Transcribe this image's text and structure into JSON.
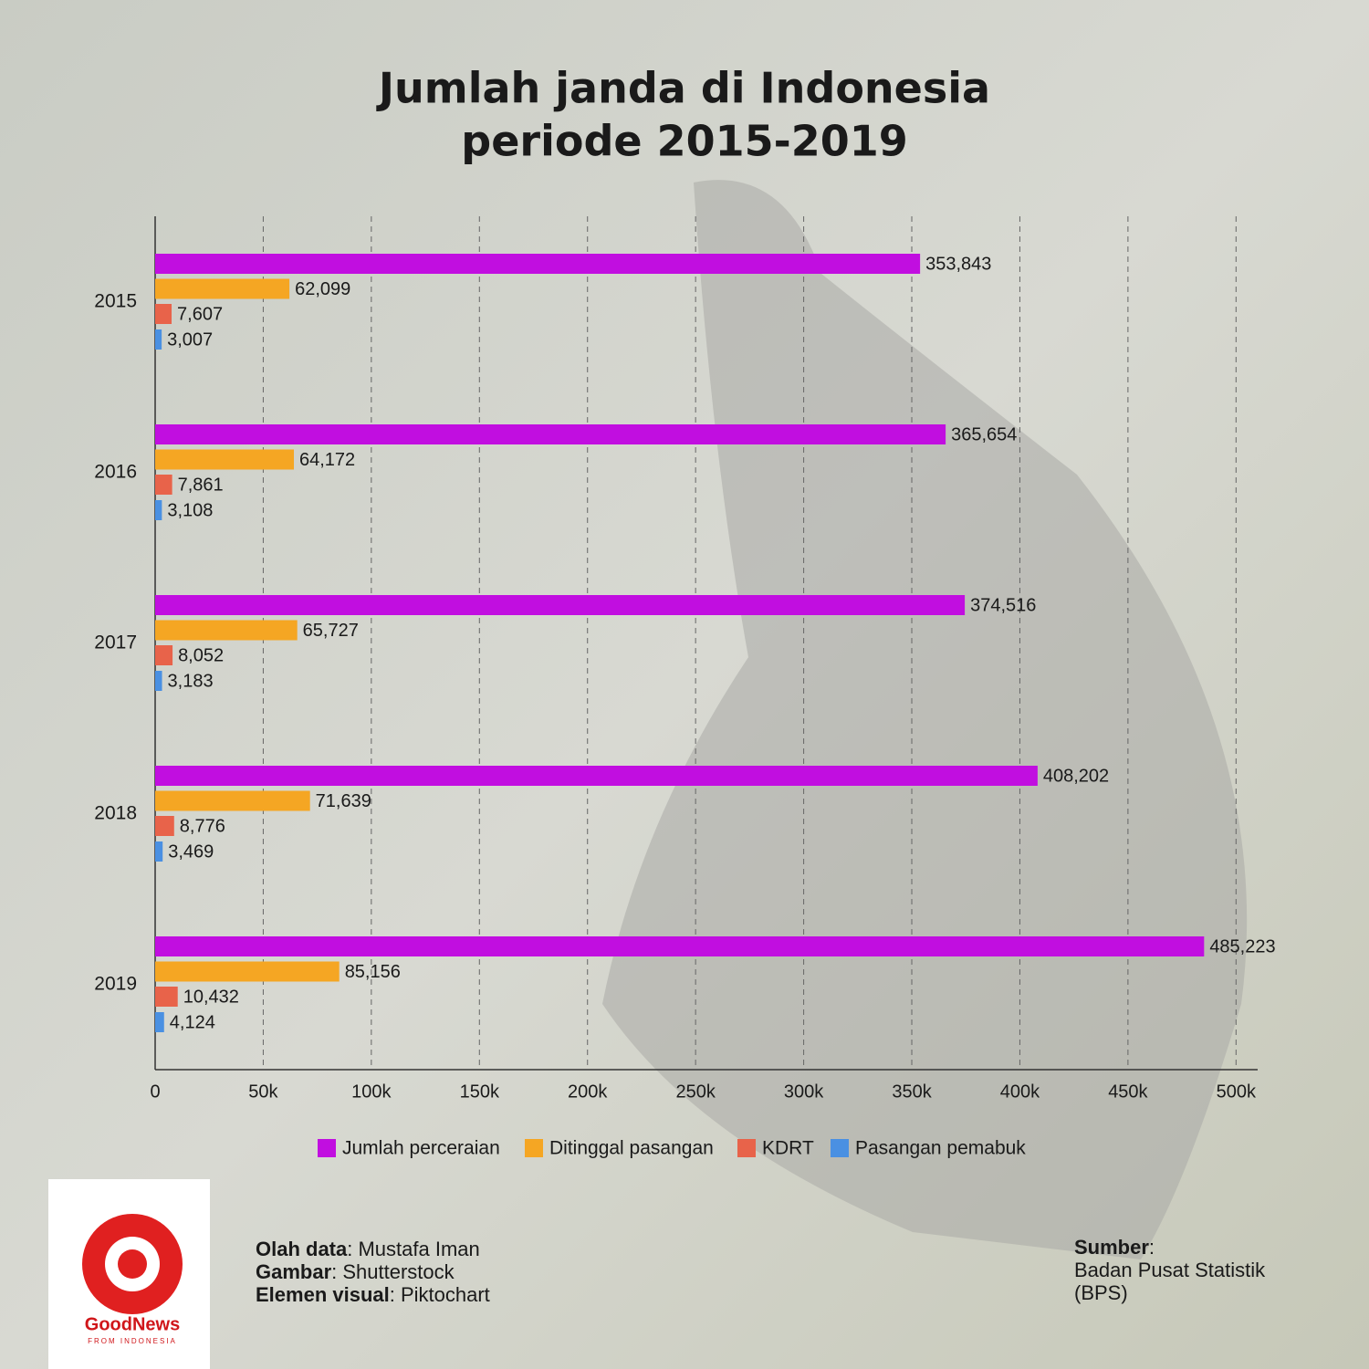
{
  "chart_data": {
    "type": "bar",
    "orientation": "horizontal",
    "title": [
      "Jumlah janda di Indonesia",
      "periode 2015-2019"
    ],
    "categories": [
      "2015",
      "2016",
      "2017",
      "2018",
      "2019"
    ],
    "series": [
      {
        "name": "Jumlah perceraian",
        "color": "#c10ee0",
        "values": [
          353843,
          365654,
          374516,
          408202,
          485223
        ],
        "value_labels": [
          "353,843",
          "365,654",
          "374,516",
          "408,202",
          "485,223"
        ]
      },
      {
        "name": "Ditinggal pasangan",
        "color": "#f5a623",
        "values": [
          62099,
          64172,
          65727,
          71639,
          85156
        ],
        "value_labels": [
          "62,099",
          "64,172",
          "65,727",
          "71,639",
          "85,156"
        ]
      },
      {
        "name": "KDRT",
        "color": "#e8634a",
        "values": [
          7607,
          7861,
          8052,
          8776,
          10432
        ],
        "value_labels": [
          "7,607",
          "7,861",
          "8,052",
          "8,776",
          "10,432"
        ]
      },
      {
        "name": "Pasangan pemabuk",
        "color": "#4a90e2",
        "values": [
          3007,
          3108,
          3183,
          3469,
          4124
        ],
        "value_labels": [
          "3,007",
          "3,108",
          "3,183",
          "3,469",
          "4,124"
        ]
      }
    ],
    "xlim": [
      0,
      510000
    ],
    "xticks": [
      0,
      {
        "value": 50000,
        "label": "50k"
      },
      {
        "value": 100000,
        "label": "100k"
      },
      {
        "value": 150000,
        "label": "150k"
      },
      {
        "value": 200000,
        "label": "200k"
      },
      {
        "value": 250000,
        "label": "250k"
      },
      {
        "value": 300000,
        "label": "300k"
      },
      {
        "value": 350000,
        "label": "350k"
      },
      {
        "value": 400000,
        "label": "400k"
      },
      {
        "value": 450000,
        "label": "450k"
      },
      {
        "value": 500000,
        "label": "500k"
      }
    ],
    "grid": true,
    "legend": "bottom"
  },
  "credits": [
    {
      "label": "Olah data",
      "text": ": Mustafa Iman"
    },
    {
      "label": "Gambar",
      "text": ": Shutterstock"
    },
    {
      "label": "Elemen visual",
      "text": ": Piktochart"
    }
  ],
  "source": {
    "label": "Sumber",
    "text": ":",
    "lines": [
      "Badan Pusat Statistik",
      "(BPS)"
    ]
  },
  "logo": {
    "name": "GoodNews",
    "tagline": "FROM INDONESIA"
  }
}
